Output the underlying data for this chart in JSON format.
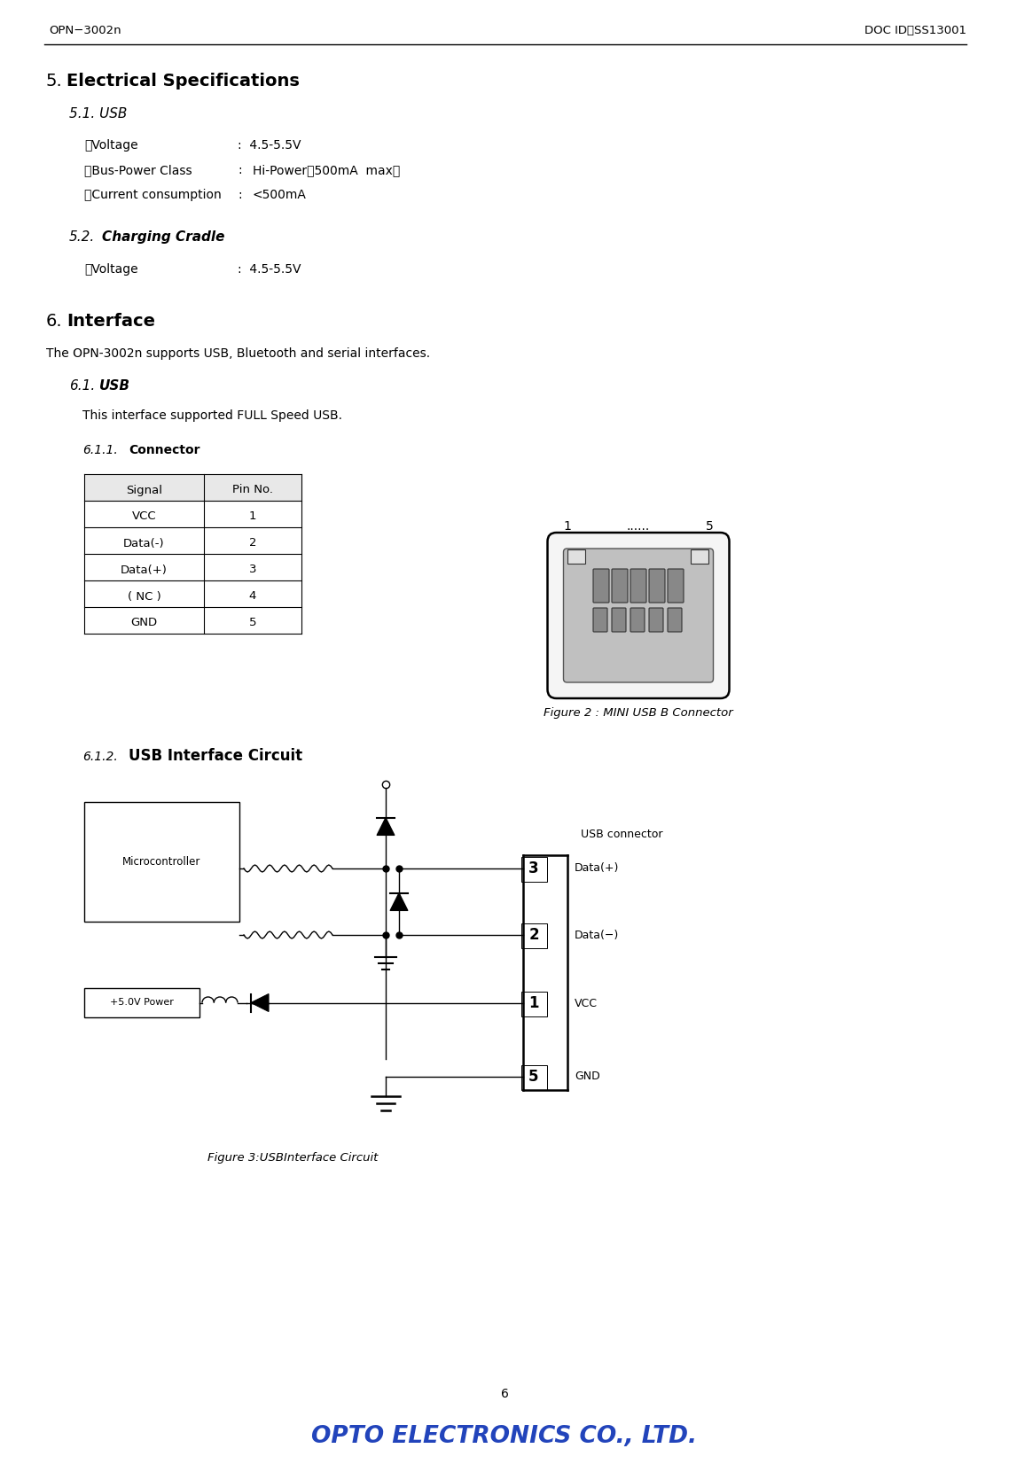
{
  "header_left": "OPN−3002n",
  "header_right": "DOC ID：SS13001",
  "page_number": "6",
  "sec5_num": "5.",
  "sec5_text": "Electrical Specifications",
  "sec51": "5.1. USB",
  "usb_bullet1_lbl": "・Voltage",
  "usb_bullet1_val": ":  4.5-5.5V",
  "usb_bullet2_lbl": "・Bus-Power Class",
  "usb_bullet2_col": ":",
  "usb_bullet2_val": "Hi-Power（500mA  max）",
  "usb_bullet3_lbl": "・Current consumption",
  "usb_bullet3_col": ":",
  "usb_bullet3_val": "<500mA",
  "sec52_num": "5.2.",
  "sec52_text": "Charging Cradle",
  "chg_bullet1_lbl": "・Voltage",
  "chg_bullet1_val": ":  4.5-5.5V",
  "sec6_num": "6.",
  "sec6_text": "Interface",
  "sec6_body": "The OPN-3002n supports USB, Bluetooth and serial interfaces.",
  "sec61_num": "6.1.",
  "sec61_text": "USB",
  "sec61_body": "This interface supported FULL Speed USB.",
  "sec611_num": "6.1.1.",
  "sec611_text": "Connector",
  "tbl_headers": [
    "Signal",
    "Pin No."
  ],
  "tbl_rows": [
    [
      "VCC",
      "1"
    ],
    [
      "Data(-)",
      "2"
    ],
    [
      "Data(+)",
      "3"
    ],
    [
      "( NC )",
      "4"
    ],
    [
      "GND",
      "5"
    ]
  ],
  "fig2_caption": "Figure 2 : MINI USB B Connector",
  "sec612_num": "6.1.2.",
  "sec612_text": "USB Interface Circuit",
  "circuit_labels": [
    "Data(+)",
    "Data(−)",
    "VCC",
    "GND"
  ],
  "circuit_pins": [
    "3",
    "2",
    "1",
    "5"
  ],
  "usb_connector_label": "USB connector",
  "microcontroller_label": "Microcontroller",
  "power_label": "+5.0V Power",
  "fig3_caption": "Figure 3:USBInterface Circuit",
  "logo_color": "#2244bb",
  "bg_color": "#ffffff",
  "text_color": "#000000"
}
